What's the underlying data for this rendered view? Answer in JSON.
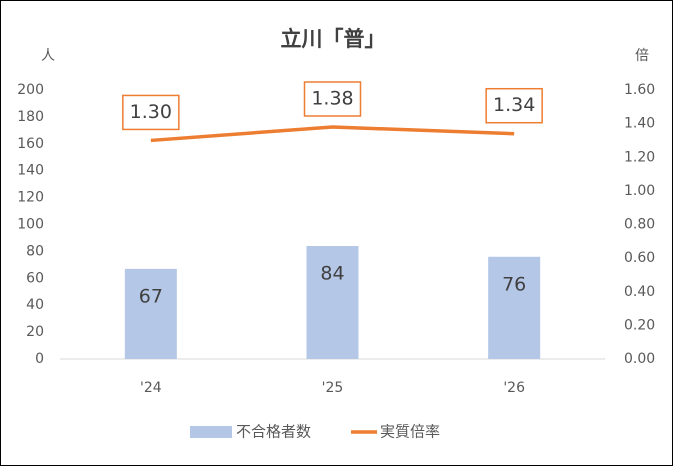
{
  "chart_data": {
    "type": "bar",
    "title": "立川「普」",
    "y_label": "人",
    "y2_label": "倍",
    "categories": [
      "'24",
      "'25",
      "'26"
    ],
    "series": [
      {
        "name": "不合格者数",
        "type": "bar",
        "color": "#b4c7e7",
        "values": [
          67,
          84,
          76
        ]
      },
      {
        "name": "実質倍率",
        "type": "line",
        "axis": "y2",
        "color": "#ed7d31",
        "values": [
          1.3,
          1.38,
          1.34
        ],
        "value_labels": [
          "1.30",
          "1.38",
          "1.34"
        ]
      }
    ],
    "ylim": [
      0,
      200
    ],
    "yticks": [
      0,
      20,
      40,
      60,
      80,
      100,
      120,
      140,
      160,
      180,
      200
    ],
    "y2lim": [
      0,
      1.6
    ],
    "y2ticks": [
      {
        "value": 0,
        "label": "0.00"
      },
      {
        "value": 0.2,
        "label": "0.20"
      },
      {
        "value": 0.4,
        "label": "0.40"
      },
      {
        "value": 0.6,
        "label": "0.60"
      },
      {
        "value": 0.8,
        "label": "0.80"
      },
      {
        "value": 1.0,
        "label": "1.00"
      },
      {
        "value": 1.2,
        "label": "1.20"
      },
      {
        "value": 1.4,
        "label": "1.40"
      },
      {
        "value": 1.6,
        "label": "1.60"
      }
    ],
    "grid": false,
    "legend": "bottom"
  }
}
